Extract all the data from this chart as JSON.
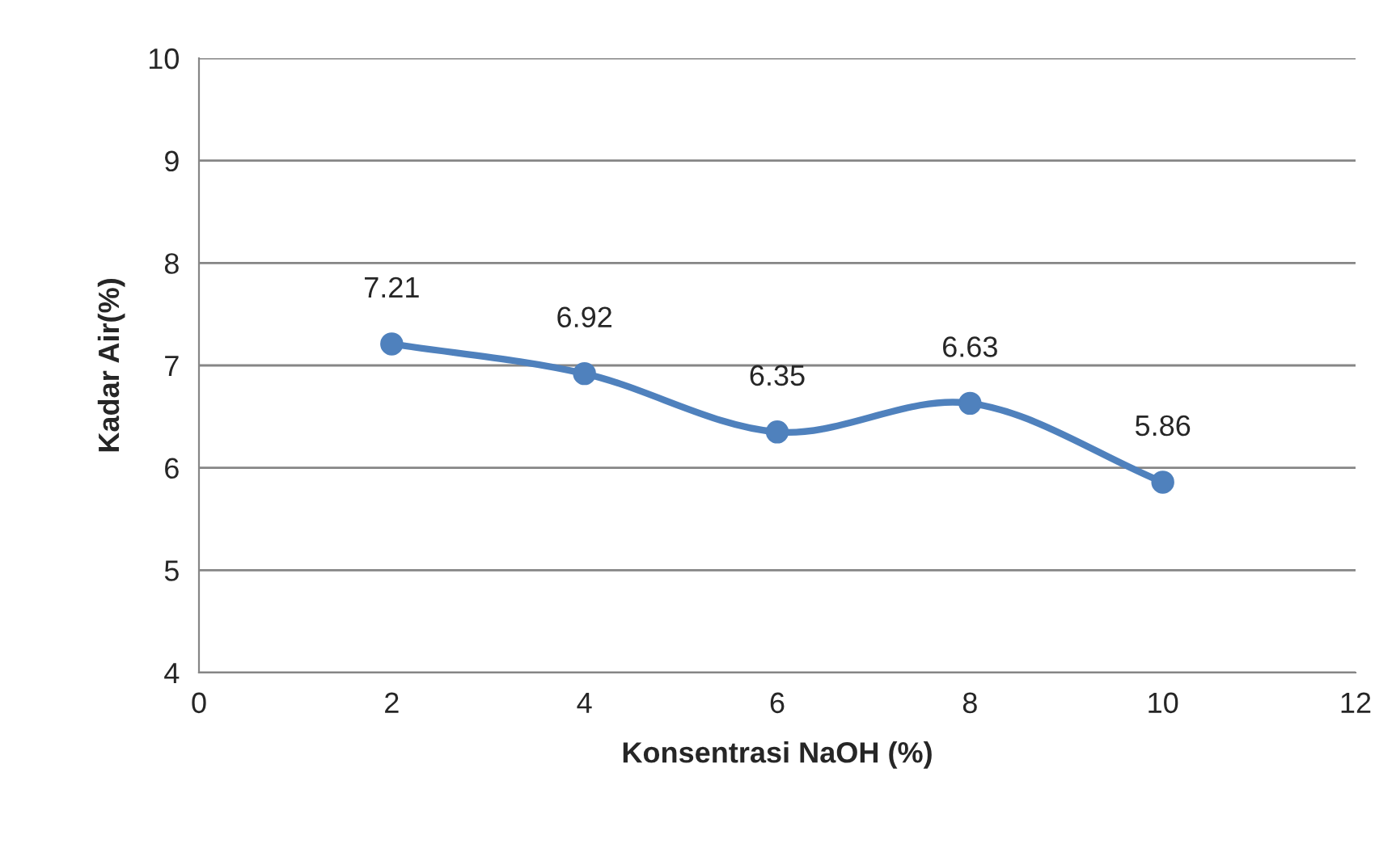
{
  "chart_data": {
    "type": "line",
    "xlabel": "Konsentrasi NaOH (%)",
    "ylabel": "Kadar Air(%)",
    "x": [
      2,
      4,
      6,
      8,
      10
    ],
    "series": [
      {
        "color": "#4f81bd",
        "values": [
          7.21,
          6.92,
          6.35,
          6.63,
          5.86
        ]
      }
    ],
    "xlim": [
      0,
      12
    ],
    "xticks": [
      0,
      2,
      4,
      6,
      8,
      10,
      12
    ],
    "ylim": [
      4,
      10
    ],
    "yticks": [
      4,
      5,
      6,
      7,
      8,
      9,
      10
    ],
    "grid": "y",
    "marker": "circle",
    "line_style": "solid",
    "data_labels": true
  }
}
